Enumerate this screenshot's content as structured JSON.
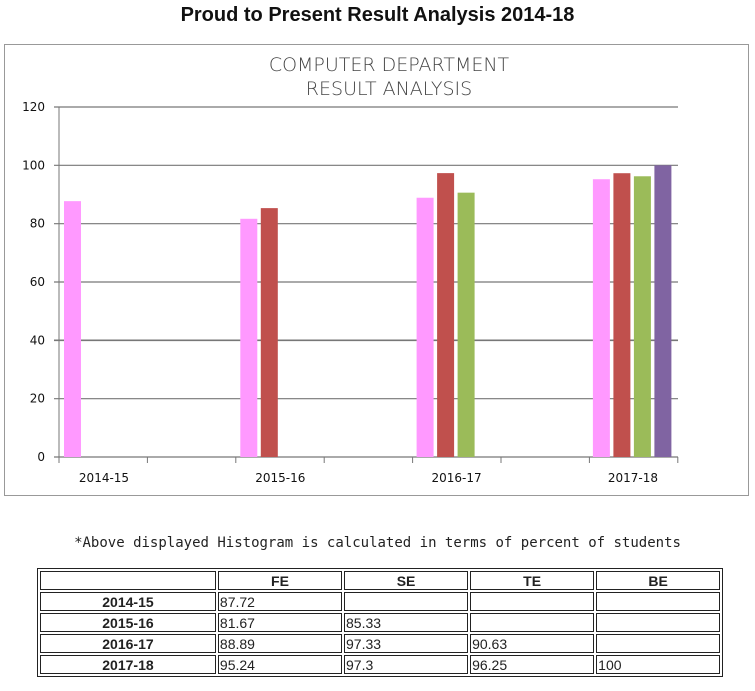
{
  "page_title": "Proud to Present Result Analysis 2014-18",
  "note": "*Above displayed Histogram is calculated in terms of percent of students",
  "chart_data": {
    "type": "bar",
    "title_lines": [
      "COMPUTER DEPARTMENT",
      "RESULT ANALYSIS"
    ],
    "categories": [
      "2014-15",
      "2015-16",
      "2016-17",
      "2017-18"
    ],
    "series": [
      {
        "values": [
          87.72,
          81.67,
          88.89,
          95.24
        ],
        "color": "#ff99ff"
      },
      {
        "values": [
          null,
          85.33,
          97.33,
          97.3
        ],
        "color": "#c0504d"
      },
      {
        "values": [
          null,
          null,
          90.63,
          96.25
        ],
        "color": "#9bbb59"
      },
      {
        "values": [
          null,
          null,
          null,
          100
        ],
        "color": "#8064a2"
      }
    ],
    "ylim": [
      0,
      120
    ],
    "yticks": [
      "0",
      "20",
      "40",
      "60",
      "80",
      "100",
      "120"
    ],
    "grid": true,
    "legend": "none"
  },
  "table": {
    "headers": [
      "",
      "FE",
      "SE",
      "TE",
      "BE"
    ],
    "rows": [
      [
        "2014-15",
        "87.72",
        "",
        "",
        ""
      ],
      [
        "2015-16",
        "81.67",
        "85.33",
        "",
        ""
      ],
      [
        "2016-17",
        "88.89",
        "97.33",
        "90.63",
        ""
      ],
      [
        "2017-18",
        "95.24",
        "97.3",
        "96.25",
        "100"
      ]
    ]
  }
}
